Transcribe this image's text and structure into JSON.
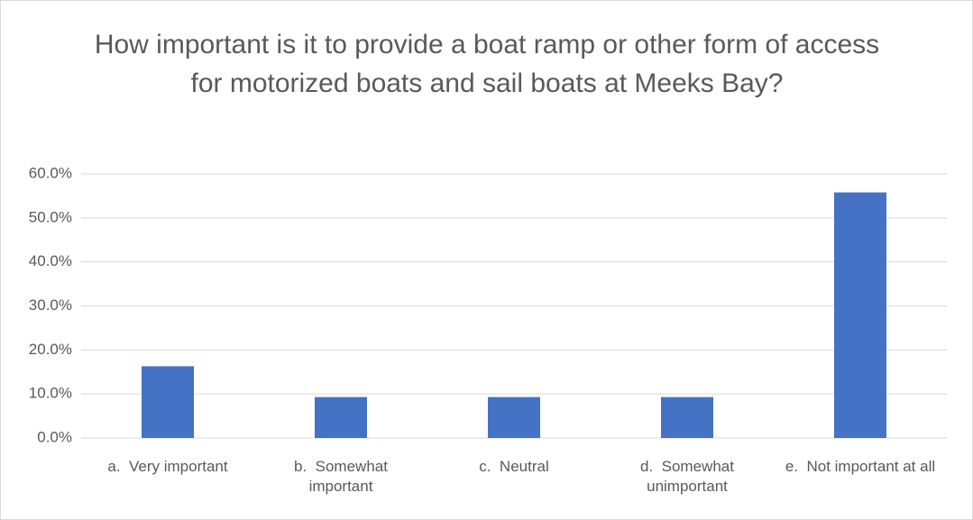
{
  "chart_data": {
    "type": "bar",
    "title": "How important is it to provide a boat ramp or other form of access for motorized boats and sail boats at Meeks Bay?",
    "categories": [
      "a.  Very important",
      "b.  Somewhat important",
      "c.  Neutral",
      "d.  Somewhat unimportant",
      "e.  Not important at all"
    ],
    "values": [
      16.3,
      9.3,
      9.3,
      9.3,
      55.8
    ],
    "color": "#4472c4",
    "ylim": [
      0,
      60
    ],
    "yticks": [
      {
        "value": 0,
        "label": "0.0%"
      },
      {
        "value": 10,
        "label": "10.0%"
      },
      {
        "value": 20,
        "label": "20.0%"
      },
      {
        "value": 30,
        "label": "30.0%"
      },
      {
        "value": 40,
        "label": "40.0%"
      },
      {
        "value": 50,
        "label": "50.0%"
      },
      {
        "value": 60,
        "label": "60.0%"
      }
    ],
    "grid": true
  }
}
